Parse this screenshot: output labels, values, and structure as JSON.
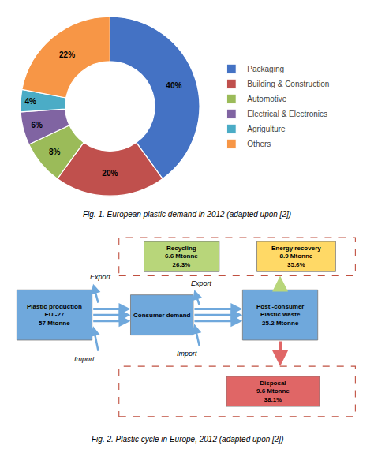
{
  "chart_data": [
    {
      "type": "pie",
      "title": "Fig. 1. European plastic demand in 2012 (adapted upon [2])",
      "categories": [
        "Packaging",
        "Building & Construction",
        "Automotive",
        "Electrical & Electronics",
        "Agrigulture",
        "Others"
      ],
      "values": [
        40,
        20,
        8,
        6,
        4,
        22
      ],
      "value_labels": [
        "40%",
        "20%",
        "8%",
        "6%",
        "4%",
        "22%"
      ],
      "colors": [
        "#4472C4",
        "#C0504D",
        "#9BBB59",
        "#8064A2",
        "#4BACC6",
        "#F79646"
      ],
      "legend": "right",
      "data_labels": true
    },
    {
      "type": "flow",
      "title": "Fig. 2. Plastic cycle in Europe, 2012 (adapted upon [2])",
      "annotations": [
        "Plastic production\nEU -27\n57 Mtonne",
        "Consumer demand",
        "Post -consumer\nPlastic waste\n25.2 Mtonne",
        "Recycling\n6.6 Mtonne\n26.3%",
        "Energy recovery\n8.9 Mtonne\n35.6%",
        "Disposal\n9.6 Mtonne\n38.1%",
        "Export",
        "Import",
        "Export",
        "Import"
      ],
      "colors": [
        "#6FA8DC",
        "#6FA8DC",
        "#6FA8DC",
        "#B8D67A",
        "#FFD966",
        "#E06666"
      ]
    }
  ]
}
